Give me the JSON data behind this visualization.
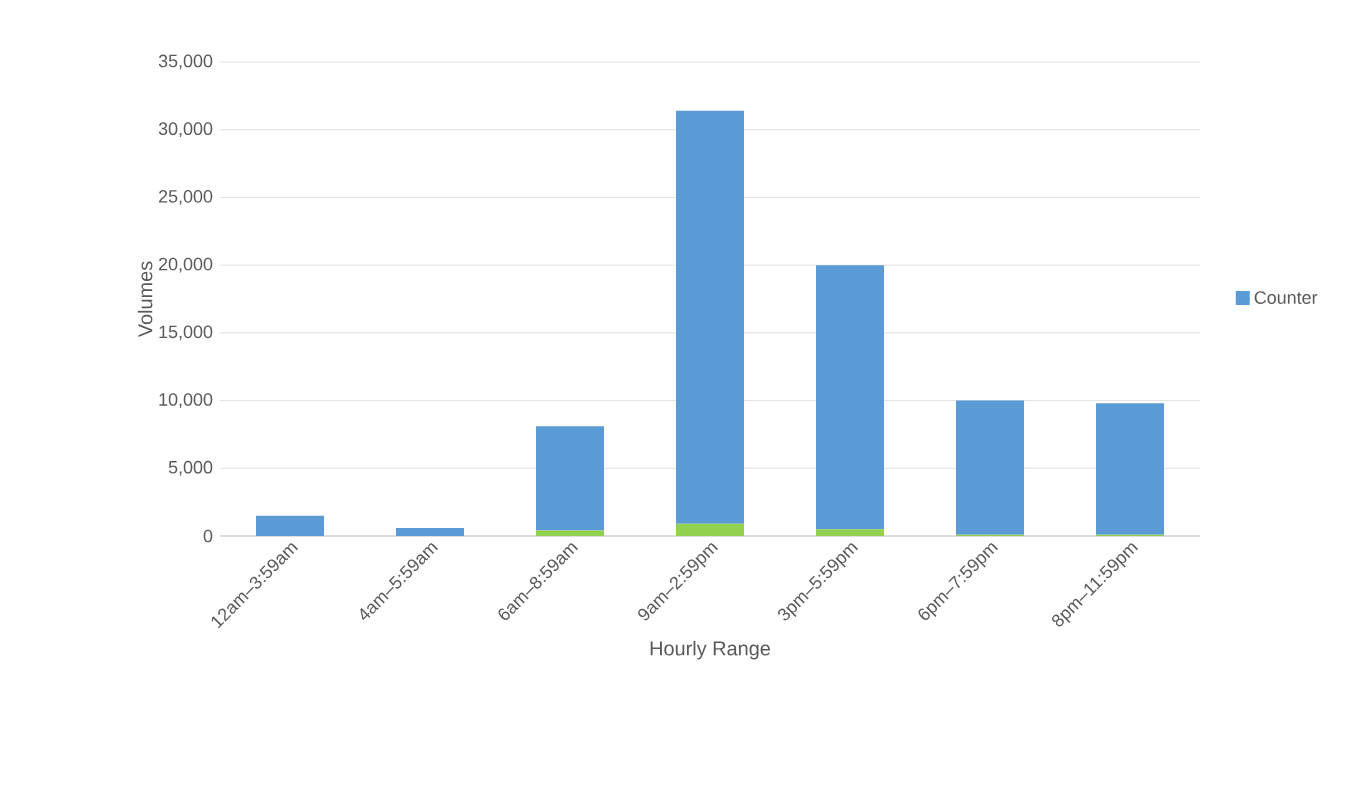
{
  "chart_data": {
    "type": "bar",
    "stacked": true,
    "xlabel": "Hourly Range",
    "ylabel": "Volumes",
    "categories": [
      "12am–3:59am",
      "4am–5:59am",
      "6am–8:59am",
      "9am–2:59pm",
      "3pm–5:59pm",
      "6pm–7:59pm",
      "8pm–11:59pm"
    ],
    "series": [
      {
        "color": "#92d050",
        "values": [
          null,
          null,
          400,
          900,
          500,
          100,
          100
        ]
      },
      {
        "name": "Counter",
        "color": "#5b9bd5",
        "values": [
          1500,
          600,
          7700,
          30500,
          19500,
          9900,
          9700
        ]
      }
    ],
    "ylim": [
      0,
      35000
    ],
    "yticks": [
      {
        "value": 0,
        "label": "0"
      },
      {
        "value": 5000,
        "label": "5,000"
      },
      {
        "value": 10000,
        "label": "10,000"
      },
      {
        "value": 15000,
        "label": "15,000"
      },
      {
        "value": 20000,
        "label": "20,000"
      },
      {
        "value": 25000,
        "label": "25,000"
      },
      {
        "value": 30000,
        "label": "30,000"
      },
      {
        "value": 35000,
        "label": "35,000"
      }
    ],
    "grid": "y",
    "legend": "right"
  }
}
